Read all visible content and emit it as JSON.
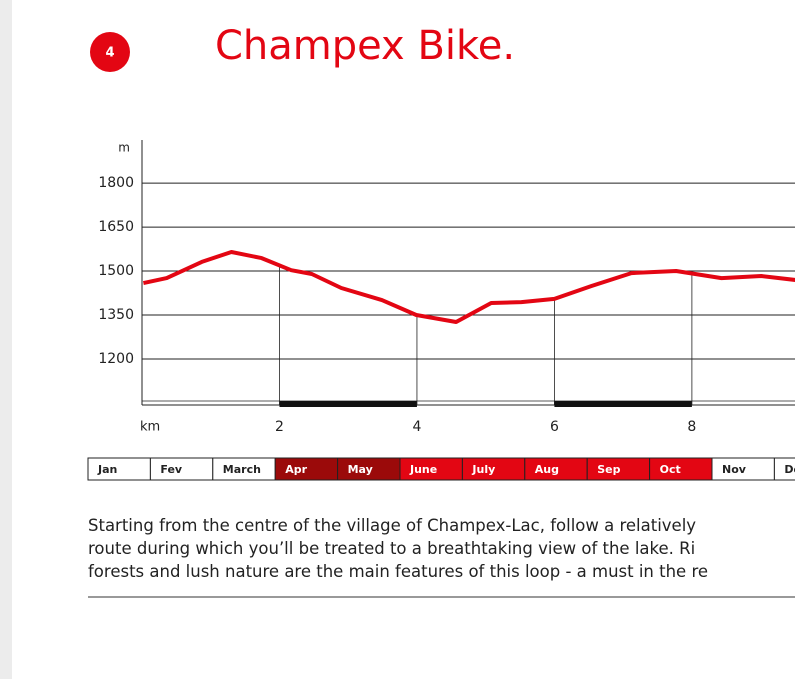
{
  "badge": "4",
  "title": "Champex Bike.",
  "chart_data": {
    "type": "line",
    "y_label": "m",
    "x_label": "km",
    "x": [
      0.02,
      0.36,
      0.87,
      1.3,
      1.74,
      2.17,
      2.47,
      2.9,
      3.49,
      3.99,
      4.57,
      5.08,
      5.52,
      6.0,
      6.54,
      7.12,
      7.77,
      8.43,
      9.01,
      9.52
    ],
    "values": [
      1459,
      1476,
      1531,
      1565,
      1544,
      1503,
      1490,
      1442,
      1401,
      1350,
      1326,
      1391,
      1394,
      1405,
      1449,
      1493,
      1500,
      1476,
      1483,
      1469
    ],
    "color": "#e30613",
    "xlim": [
      0,
      9.5
    ],
    "xticks": [
      2,
      4,
      6,
      8
    ],
    "ylim": [
      1043,
      1947
    ],
    "yticks": [
      1200,
      1350,
      1500,
      1650,
      1800
    ],
    "grid": true
  },
  "months": [
    {
      "name": "Jan",
      "color": "#ffffff"
    },
    {
      "name": "Fev",
      "color": "#ffffff"
    },
    {
      "name": "March",
      "color": "#ffffff"
    },
    {
      "name": "Apr",
      "color": "#9b0a0a"
    },
    {
      "name": "May",
      "color": "#9b0a0a"
    },
    {
      "name": "June",
      "color": "#e30613"
    },
    {
      "name": "July",
      "color": "#e30613"
    },
    {
      "name": "Aug",
      "color": "#e30613"
    },
    {
      "name": "Sep",
      "color": "#e30613"
    },
    {
      "name": "Oct",
      "color": "#e30613"
    },
    {
      "name": "Nov",
      "color": "#ffffff"
    },
    {
      "name": "Dec",
      "color": "#ffffff"
    }
  ],
  "description": [
    "Starting from the centre of the village of Champex-Lac, follow a relatively",
    "route during which you’ll be treated to a breathtaking view of the lake. Ri",
    "forests and lush nature are the main features of this loop - a must in the re"
  ]
}
